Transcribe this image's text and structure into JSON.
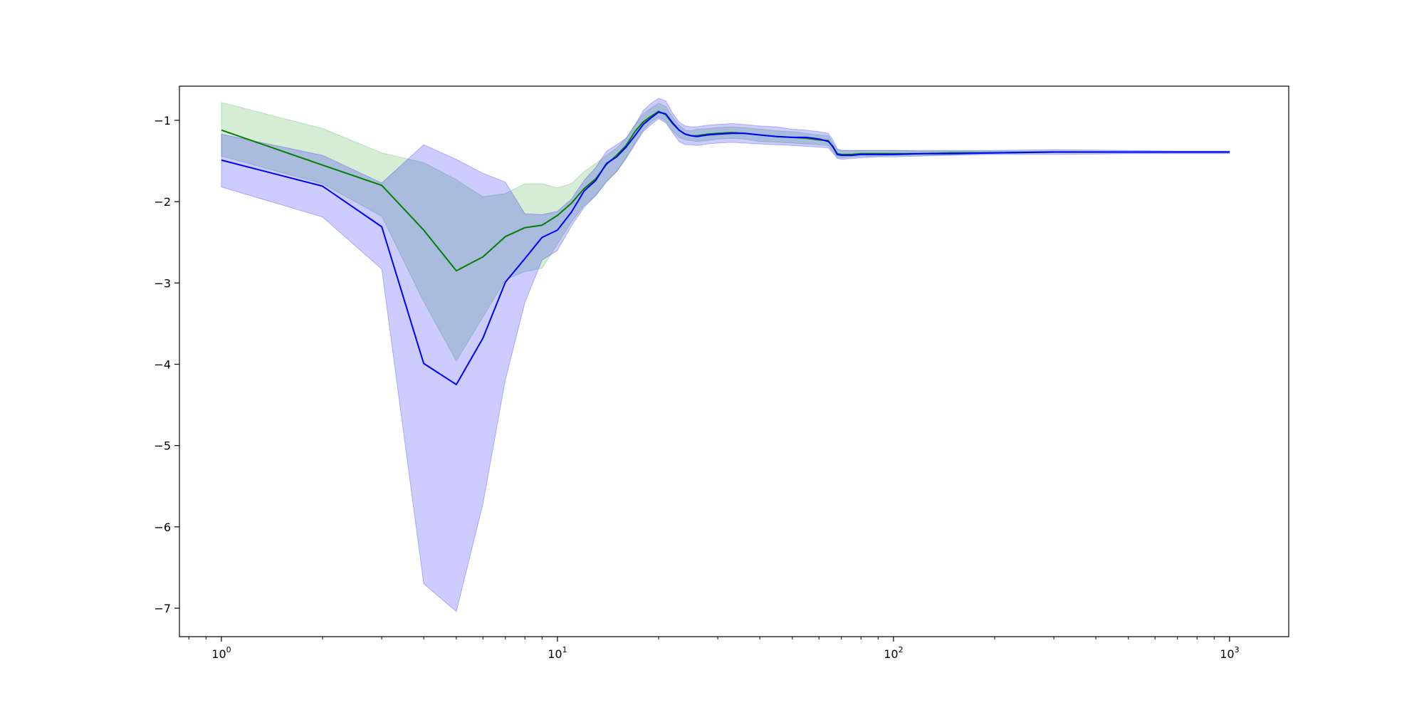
{
  "chart_data": {
    "type": "line",
    "title": "",
    "xlabel": "",
    "ylabel": "",
    "x_scale": "log",
    "xlim": [
      0.75,
      1500
    ],
    "ylim": [
      -7.35,
      -0.58
    ],
    "grid": false,
    "legend": "none",
    "x_ticks": [
      {
        "value": 1,
        "base": "10",
        "exp": "0"
      },
      {
        "value": 10,
        "base": "10",
        "exp": "1"
      },
      {
        "value": 100,
        "base": "10",
        "exp": "2"
      },
      {
        "value": 1000,
        "base": "10",
        "exp": "3"
      }
    ],
    "y_ticks": [
      {
        "value": -1,
        "label": "−1"
      },
      {
        "value": -2,
        "label": "−2"
      },
      {
        "value": -3,
        "label": "−3"
      },
      {
        "value": -4,
        "label": "−4"
      },
      {
        "value": -5,
        "label": "−5"
      },
      {
        "value": -6,
        "label": "−6"
      },
      {
        "value": -7,
        "label": "−7"
      }
    ],
    "series": [
      {
        "color": "#008000",
        "band_color": "#2ca02c",
        "x": [
          1,
          2,
          3,
          4,
          5,
          6,
          7,
          8,
          9,
          10,
          11,
          12,
          13,
          14,
          15,
          16,
          17,
          18,
          19,
          20,
          21,
          22,
          23,
          24,
          25,
          26,
          28,
          30,
          33,
          36,
          40,
          45,
          50,
          55,
          60,
          64,
          66,
          68,
          70,
          75,
          80,
          90,
          100,
          120,
          150,
          200,
          300,
          500,
          700,
          1000
        ],
        "mean": [
          -1.12,
          -1.55,
          -1.8,
          -2.35,
          -2.85,
          -2.68,
          -2.43,
          -2.32,
          -2.29,
          -2.17,
          -2.02,
          -1.84,
          -1.72,
          -1.54,
          -1.43,
          -1.31,
          -1.14,
          -1.02,
          -0.95,
          -0.89,
          -0.93,
          -1.04,
          -1.12,
          -1.17,
          -1.19,
          -1.19,
          -1.17,
          -1.16,
          -1.15,
          -1.16,
          -1.18,
          -1.2,
          -1.21,
          -1.22,
          -1.24,
          -1.25,
          -1.33,
          -1.41,
          -1.42,
          -1.42,
          -1.41,
          -1.41,
          -1.41,
          -1.41,
          -1.4,
          -1.4,
          -1.39,
          -1.39,
          -1.39,
          -1.39
        ],
        "upper": [
          -0.78,
          -1.1,
          -1.4,
          -1.52,
          -1.73,
          -1.94,
          -1.9,
          -1.78,
          -1.78,
          -1.83,
          -1.78,
          -1.63,
          -1.53,
          -1.43,
          -1.34,
          -1.22,
          -1.06,
          -0.92,
          -0.85,
          -0.79,
          -0.83,
          -0.96,
          -1.06,
          -1.12,
          -1.13,
          -1.11,
          -1.1,
          -1.09,
          -1.08,
          -1.09,
          -1.11,
          -1.13,
          -1.14,
          -1.16,
          -1.18,
          -1.19,
          -1.28,
          -1.36,
          -1.37,
          -1.37,
          -1.37,
          -1.37,
          -1.37,
          -1.38,
          -1.38,
          -1.38,
          -1.38,
          -1.38,
          -1.38,
          -1.38
        ],
        "lower": [
          -1.44,
          -1.78,
          -2.18,
          -3.23,
          -3.96,
          -3.42,
          -2.96,
          -2.86,
          -2.82,
          -2.52,
          -2.25,
          -2.05,
          -1.92,
          -1.76,
          -1.63,
          -1.46,
          -1.28,
          -1.12,
          -1.02,
          -0.96,
          -1.01,
          -1.13,
          -1.21,
          -1.24,
          -1.25,
          -1.26,
          -1.25,
          -1.23,
          -1.22,
          -1.23,
          -1.26,
          -1.27,
          -1.28,
          -1.29,
          -1.3,
          -1.31,
          -1.38,
          -1.45,
          -1.46,
          -1.45,
          -1.44,
          -1.44,
          -1.43,
          -1.43,
          -1.42,
          -1.41,
          -1.4,
          -1.4,
          -1.4,
          -1.4
        ]
      },
      {
        "color": "#0000ff",
        "band_color": "#0000ff",
        "x": [
          1,
          2,
          3,
          4,
          5,
          6,
          7,
          8,
          9,
          10,
          11,
          12,
          13,
          14,
          15,
          16,
          17,
          18,
          19,
          20,
          21,
          22,
          23,
          24,
          25,
          26,
          28,
          30,
          33,
          36,
          40,
          45,
          50,
          55,
          60,
          64,
          66,
          68,
          70,
          75,
          80,
          90,
          100,
          120,
          150,
          200,
          300,
          500,
          700,
          1000
        ],
        "mean": [
          -1.49,
          -1.81,
          -2.31,
          -3.99,
          -4.25,
          -3.68,
          -2.99,
          -2.7,
          -2.44,
          -2.35,
          -2.13,
          -1.87,
          -1.74,
          -1.53,
          -1.45,
          -1.33,
          -1.19,
          -1.05,
          -0.97,
          -0.9,
          -0.92,
          -1.03,
          -1.12,
          -1.17,
          -1.19,
          -1.2,
          -1.18,
          -1.17,
          -1.16,
          -1.16,
          -1.18,
          -1.2,
          -1.21,
          -1.21,
          -1.23,
          -1.26,
          -1.32,
          -1.42,
          -1.43,
          -1.43,
          -1.42,
          -1.42,
          -1.42,
          -1.41,
          -1.41,
          -1.4,
          -1.39,
          -1.39,
          -1.39,
          -1.39
        ],
        "upper": [
          -1.17,
          -1.43,
          -1.77,
          -1.3,
          -1.48,
          -1.65,
          -1.76,
          -2.15,
          -2.16,
          -2.12,
          -1.97,
          -1.74,
          -1.58,
          -1.38,
          -1.3,
          -1.22,
          -1.06,
          -0.88,
          -0.79,
          -0.73,
          -0.76,
          -0.91,
          -1.02,
          -1.07,
          -1.08,
          -1.08,
          -1.06,
          -1.05,
          -1.04,
          -1.05,
          -1.07,
          -1.08,
          -1.11,
          -1.12,
          -1.14,
          -1.16,
          -1.24,
          -1.35,
          -1.37,
          -1.37,
          -1.37,
          -1.37,
          -1.37,
          -1.37,
          -1.37,
          -1.37,
          -1.36,
          -1.37,
          -1.38,
          -1.38
        ],
        "lower": [
          -1.82,
          -2.19,
          -2.83,
          -6.7,
          -7.04,
          -5.72,
          -4.19,
          -3.24,
          -2.72,
          -2.6,
          -2.3,
          -2.07,
          -1.93,
          -1.75,
          -1.63,
          -1.47,
          -1.3,
          -1.14,
          -1.05,
          -0.98,
          -1.03,
          -1.15,
          -1.26,
          -1.3,
          -1.3,
          -1.31,
          -1.29,
          -1.28,
          -1.27,
          -1.28,
          -1.29,
          -1.3,
          -1.31,
          -1.32,
          -1.33,
          -1.34,
          -1.4,
          -1.47,
          -1.48,
          -1.47,
          -1.46,
          -1.45,
          -1.45,
          -1.44,
          -1.43,
          -1.42,
          -1.42,
          -1.41,
          -1.41,
          -1.41
        ]
      }
    ]
  }
}
